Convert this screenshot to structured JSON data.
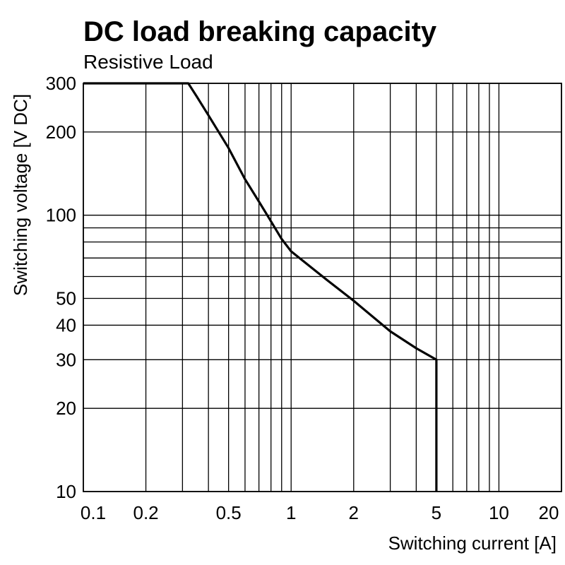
{
  "chart_data": {
    "type": "line",
    "title": "DC load breaking capacity",
    "subtitle": "Resistive Load",
    "xlabel": "Switching current [A]",
    "ylabel": "Switching voltage [V DC]",
    "x_scale": "log",
    "y_scale": "log",
    "xlim": [
      0.1,
      20
    ],
    "ylim": [
      10,
      300
    ],
    "x_ticks": [
      0.1,
      0.2,
      0.5,
      1,
      2,
      5,
      10,
      20
    ],
    "x_tick_labels": [
      "0.1",
      "0.2",
      "0.5",
      "1",
      "2",
      "5",
      "10",
      "20"
    ],
    "y_ticks": [
      10,
      20,
      30,
      40,
      50,
      100,
      200,
      300
    ],
    "y_tick_labels": [
      "10",
      "20",
      "30",
      "40",
      "50",
      "100",
      "200",
      "300"
    ],
    "x_grid": [
      0.1,
      0.2,
      0.3,
      0.4,
      0.5,
      0.6,
      0.7,
      0.8,
      0.9,
      1,
      2,
      3,
      4,
      5,
      6,
      7,
      8,
      9,
      10,
      20
    ],
    "y_grid": [
      10,
      20,
      30,
      40,
      50,
      60,
      70,
      80,
      90,
      100,
      200,
      300
    ],
    "grid": true,
    "legend": false,
    "series": [
      {
        "x": [
          0.1,
          0.32,
          0.35,
          0.4,
          0.5,
          0.6,
          0.7,
          0.8,
          0.9,
          1.0,
          1.5,
          2.0,
          3.0,
          4.0,
          5.0,
          5.0
        ],
        "values": [
          300,
          300,
          270,
          230,
          175,
          135,
          112,
          95,
          82,
          74,
          58,
          49,
          38,
          33,
          30,
          10
        ]
      }
    ]
  }
}
